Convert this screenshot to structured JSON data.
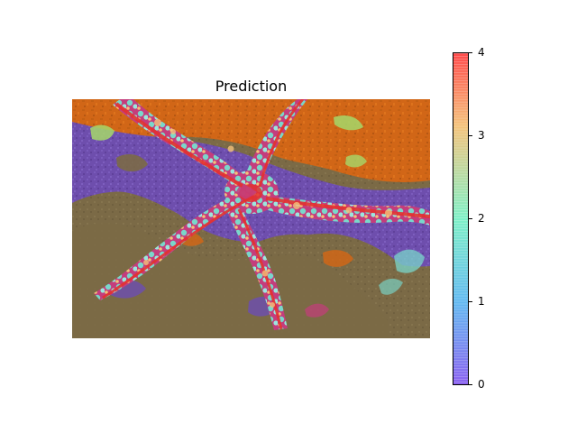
{
  "title": "Prediction",
  "colorbar": {
    "ticks": [
      "4",
      "3",
      "2",
      "1",
      "0"
    ],
    "colors": {
      "top": "#ff4b4b",
      "upper": "#f4c27a",
      "middle": "#7ff0c7",
      "lower": "#61b9f0",
      "bottom": "#8b62f0"
    }
  },
  "image": {
    "palette": {
      "background_olive": "#7b6a46",
      "purple": "#6d4db1",
      "orange": "#d66614",
      "red": "#e3312f",
      "magenta": "#c43d7c",
      "aqua": "#7ad7cb",
      "light_aqua": "#9be7de",
      "green": "#a6d86a",
      "yellow": "#d7d76c"
    }
  }
}
